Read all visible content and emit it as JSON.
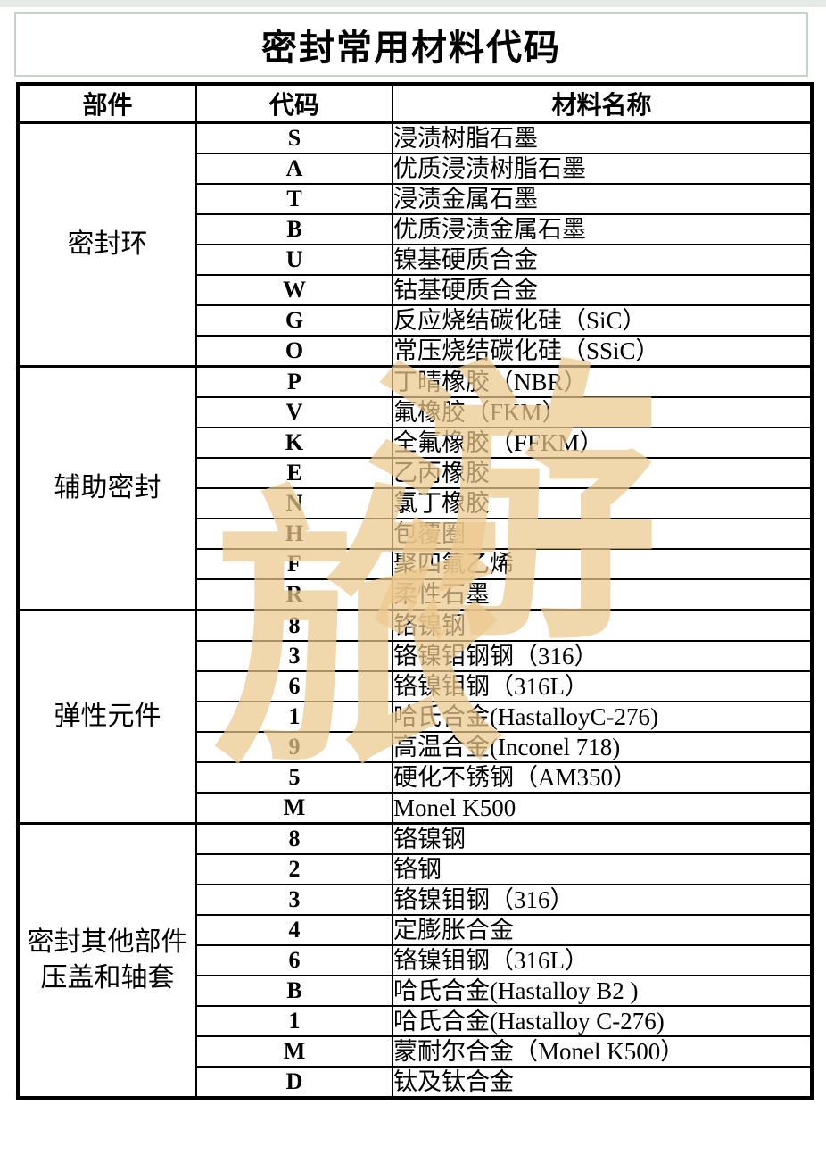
{
  "page": {
    "title": "密封常用材料代码"
  },
  "table": {
    "headers": {
      "part": "部件",
      "code": "代码",
      "name": "材料名称"
    },
    "sections": [
      {
        "part_lines": [
          "密封环"
        ],
        "rows": [
          {
            "code": "S",
            "name": "浸渍树脂石墨"
          },
          {
            "code": "A",
            "name": "优质浸渍树脂石墨"
          },
          {
            "code": "T",
            "name": "浸渍金属石墨"
          },
          {
            "code": "B",
            "name": "优质浸渍金属石墨"
          },
          {
            "code": "U",
            "name": "镍基硬质合金"
          },
          {
            "code": "W",
            "name": "钴基硬质合金"
          },
          {
            "code": "G",
            "name": "反应烧结碳化硅（SiC）"
          },
          {
            "code": "O",
            "name": "常压烧结碳化硅（SSiC）"
          }
        ]
      },
      {
        "part_lines": [
          "辅助密封"
        ],
        "rows": [
          {
            "code": "P",
            "name": "丁晴橡胶（NBR）"
          },
          {
            "code": "V",
            "name": "氟橡胶（FKM）"
          },
          {
            "code": "K",
            "name": "全氟橡胶（FFKM）"
          },
          {
            "code": "E",
            "name": "乙丙橡胶"
          },
          {
            "code": "N",
            "name": "氯丁橡胶"
          },
          {
            "code": "H",
            "name": "包覆圈"
          },
          {
            "code": "F",
            "name": "聚四氟乙烯"
          },
          {
            "code": "R",
            "name": "柔性石墨"
          }
        ]
      },
      {
        "part_lines": [
          "弹性元件"
        ],
        "rows": [
          {
            "code": "8",
            "name": "铬镍钢"
          },
          {
            "code": "3",
            "name": "铬镍钼钢钢（316）"
          },
          {
            "code": "6",
            "name": "铬镍钼钢（316L）"
          },
          {
            "code": "1",
            "name": "哈氏合金(HastalloyC-276)"
          },
          {
            "code": "9",
            "name": "高温合金(Inconel 718)"
          },
          {
            "code": "5",
            "name": "硬化不锈钢（AM350）"
          },
          {
            "code": "M",
            "name": "Monel K500"
          }
        ]
      },
      {
        "part_lines": [
          "密封其他部件",
          "压盖和轴套"
        ],
        "rows": [
          {
            "code": "8",
            "name": "铬镍钢"
          },
          {
            "code": "2",
            "name": "铬钢"
          },
          {
            "code": "3",
            "name": "铬镍钼钢（316）"
          },
          {
            "code": "4",
            "name": "定膨胀合金"
          },
          {
            "code": "6",
            "name": "铬镍钼钢（316L）"
          },
          {
            "code": "B",
            "name": "哈氏合金(Hastalloy B2 )"
          },
          {
            "code": "1",
            "name": "哈氏合金(Hastalloy C-276)"
          },
          {
            "code": "M",
            "name": "蒙耐尔合金（Monel K500）"
          },
          {
            "code": "D",
            "name": "钛及钛合金"
          }
        ]
      }
    ]
  },
  "watermark": {
    "chars": [
      "游",
      "旅"
    ],
    "color": "#ecc98c"
  }
}
